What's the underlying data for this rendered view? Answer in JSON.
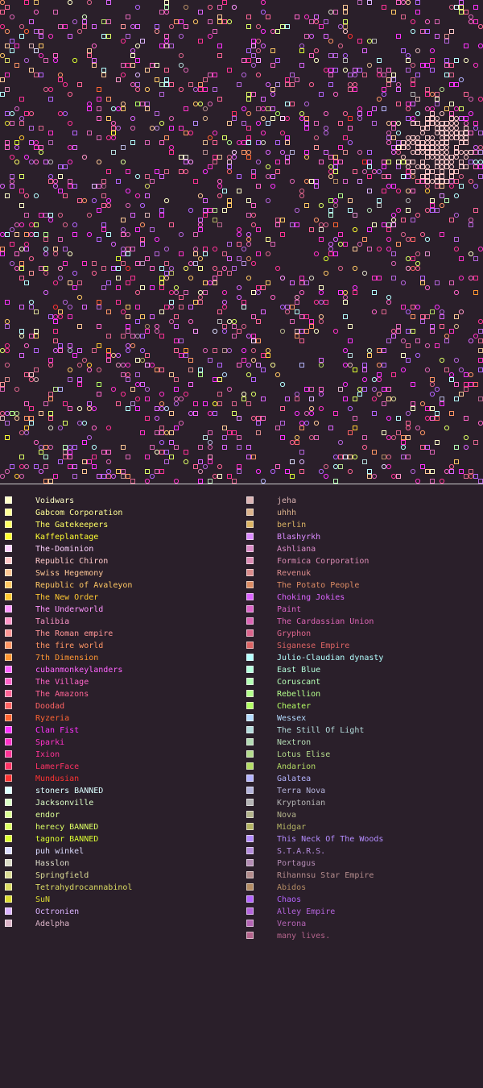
{
  "map": {
    "background": "#2a1f2a",
    "marker_shapes": [
      "square-outline",
      "circle-outline"
    ]
  },
  "legend": {
    "left": [
      {
        "name": "Voidwars",
        "color": "#ffffc8"
      },
      {
        "name": "Gabcom Corporation",
        "color": "#ffff96"
      },
      {
        "name": "The Gatekeepers",
        "color": "#ffff64"
      },
      {
        "name": "Kaffeplantage",
        "color": "#ffff32"
      },
      {
        "name": "The-Dominion",
        "color": "#ffd2ff"
      },
      {
        "name": "Republic Chiron",
        "color": "#ffc8c8"
      },
      {
        "name": "Swiss Hegemony",
        "color": "#ffc896"
      },
      {
        "name": "Republic of Avaleyon",
        "color": "#ffc864"
      },
      {
        "name": "The New Order",
        "color": "#ffc832"
      },
      {
        "name": "The Underworld",
        "color": "#ff96ff"
      },
      {
        "name": "Talibia",
        "color": "#ff96c8"
      },
      {
        "name": "The Roman empire",
        "color": "#ff9696"
      },
      {
        "name": "the fire world",
        "color": "#ff9664"
      },
      {
        "name": "7th Dimension",
        "color": "#ff9632"
      },
      {
        "name": "cubanmonkeylanders",
        "color": "#ff64ff"
      },
      {
        "name": "The Village",
        "color": "#ff64c8"
      },
      {
        "name": "The Amazons",
        "color": "#ff6496"
      },
      {
        "name": "Doodad",
        "color": "#ff6464"
      },
      {
        "name": "Ryzeria",
        "color": "#ff6432"
      },
      {
        "name": "Clan Fist",
        "color": "#ff32ff"
      },
      {
        "name": "Sparki",
        "color": "#ff32c8"
      },
      {
        "name": "Ixion",
        "color": "#ff3296"
      },
      {
        "name": "LamerFace",
        "color": "#ff3264"
      },
      {
        "name": "Mundusian",
        "color": "#ff3232"
      },
      {
        "name": "stoners BANNED",
        "color": "#dcffff"
      },
      {
        "name": "Jacksonville",
        "color": "#dcffc8"
      },
      {
        "name": "endor",
        "color": "#dcff96"
      },
      {
        "name": "herecy BANNED",
        "color": "#dcff64"
      },
      {
        "name": "tagnor BANNED",
        "color": "#dcff32"
      },
      {
        "name": "puh winkel",
        "color": "#dcdcff"
      },
      {
        "name": "Hasslon",
        "color": "#dcdcc8"
      },
      {
        "name": "Springfield",
        "color": "#dcdc96"
      },
      {
        "name": "Tetrahydrocannabinol",
        "color": "#dcdc64"
      },
      {
        "name": "SuN",
        "color": "#dcdc32"
      },
      {
        "name": "Octronien",
        "color": "#dcb4ff"
      },
      {
        "name": "Adelpha",
        "color": "#dcb4c8"
      }
    ],
    "right": [
      {
        "name": "jeha",
        "color": "#dcb4b4"
      },
      {
        "name": "uhhh",
        "color": "#dcb48c"
      },
      {
        "name": "berlin",
        "color": "#dcb464"
      },
      {
        "name": "Blashyrkh",
        "color": "#dc8cff"
      },
      {
        "name": "Ashliana",
        "color": "#dc8cc8"
      },
      {
        "name": "Formica Corporation",
        "color": "#dc8cb4"
      },
      {
        "name": "Revenuk",
        "color": "#dc8c8c"
      },
      {
        "name": "The Potato People",
        "color": "#dc8c64"
      },
      {
        "name": "Choking Jokies",
        "color": "#dc64ff"
      },
      {
        "name": "Paint",
        "color": "#dc64c8"
      },
      {
        "name": "The Cardassian Union",
        "color": "#dc64b4"
      },
      {
        "name": "Gryphon",
        "color": "#dc648c"
      },
      {
        "name": "Siganese Empire",
        "color": "#dc6464"
      },
      {
        "name": "Julio-Claudian dynasty",
        "color": "#b4ffff"
      },
      {
        "name": "East Blue",
        "color": "#b4ffdc"
      },
      {
        "name": "Coruscant",
        "color": "#b4ffb4"
      },
      {
        "name": "Rebellion",
        "color": "#b4ff8c"
      },
      {
        "name": "Cheater",
        "color": "#b4ff64"
      },
      {
        "name": "Wessex",
        "color": "#b4dcff"
      },
      {
        "name": "The Still Of Light",
        "color": "#b4dcdc"
      },
      {
        "name": "Nextron",
        "color": "#b4dcb4"
      },
      {
        "name": "Lotus Elise",
        "color": "#b4dc8c"
      },
      {
        "name": "Andarion",
        "color": "#b4dc64"
      },
      {
        "name": "Galatea",
        "color": "#b4b4ff"
      },
      {
        "name": "Terra Nova",
        "color": "#b4b4dc"
      },
      {
        "name": "Kryptonian",
        "color": "#b4b4b4"
      },
      {
        "name": "Nova",
        "color": "#b4b48c"
      },
      {
        "name": "Midgar",
        "color": "#b4b464"
      },
      {
        "name": "This Neck Of The Woods",
        "color": "#b48cff"
      },
      {
        "name": "S.T.A.R.S.",
        "color": "#b48cdc"
      },
      {
        "name": "Portagus",
        "color": "#b48cb4"
      },
      {
        "name": "Rihannsu Star Empire",
        "color": "#b48c8c"
      },
      {
        "name": "Abidos",
        "color": "#b48c64"
      },
      {
        "name": "Chaos",
        "color": "#b464ff"
      },
      {
        "name": "Alley Empire",
        "color": "#b464dc"
      },
      {
        "name": "Verona",
        "color": "#b464b4"
      },
      {
        "name": "many lives.",
        "color": "#b4648c"
      }
    ]
  }
}
